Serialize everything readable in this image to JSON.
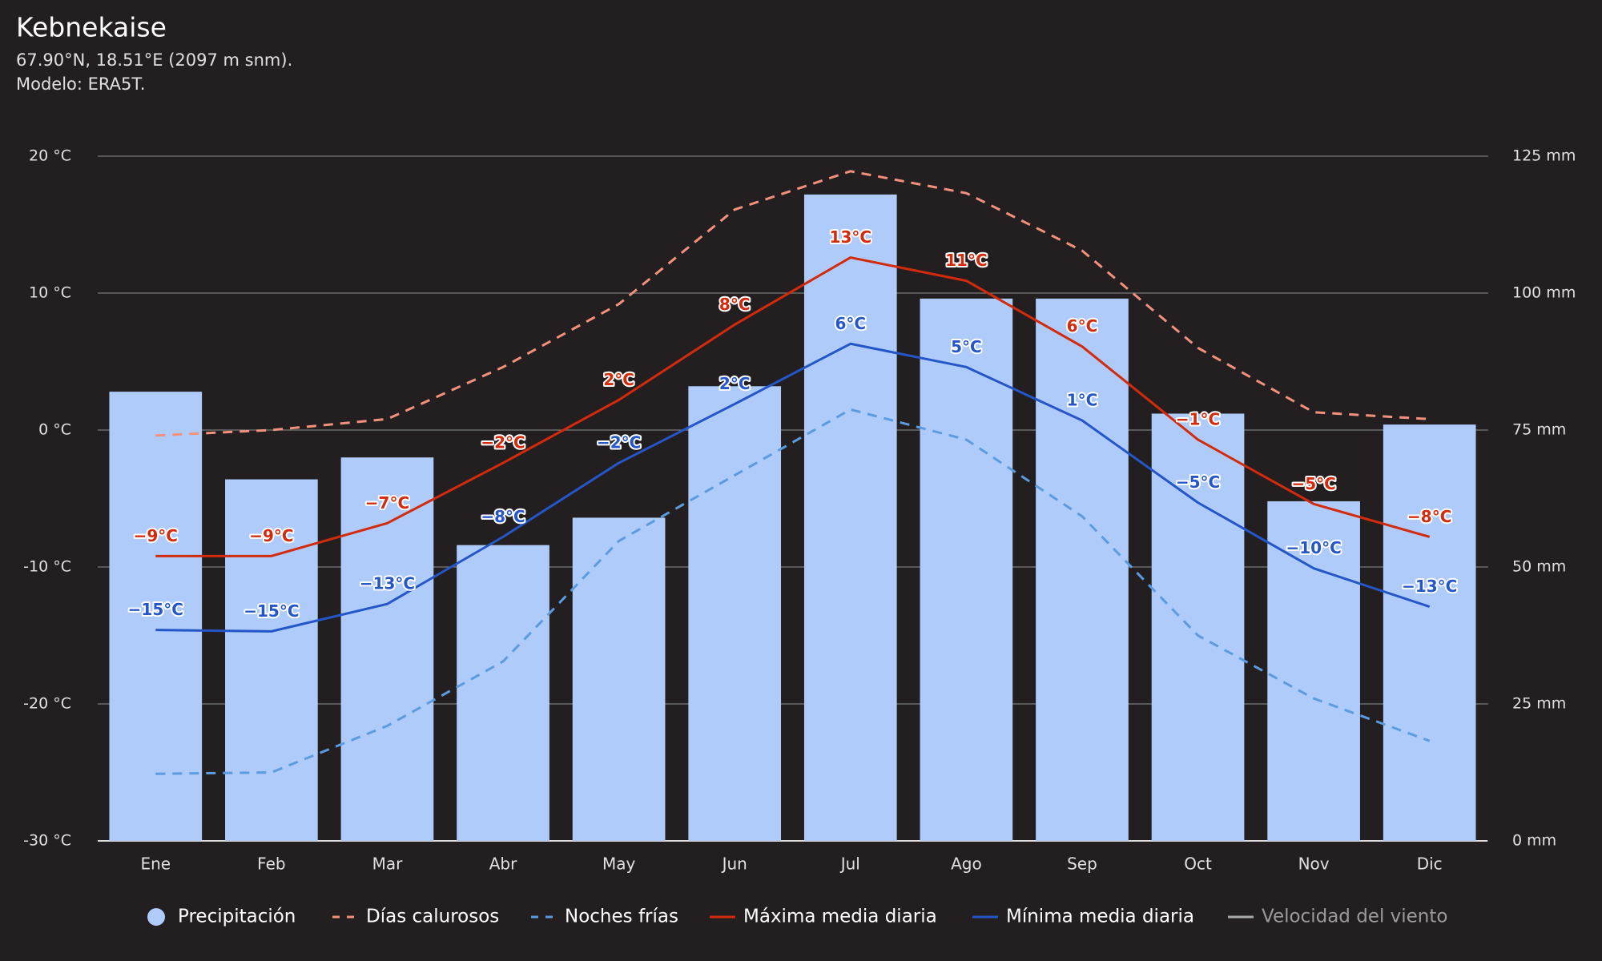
{
  "chart_data": {
    "type": "combo",
    "title": "Kebnekaise",
    "subtitle": [
      "67.90°N, 18.51°E (2097 m snm).",
      "Modelo: ERA5T."
    ],
    "categories": [
      "Ene",
      "Feb",
      "Mar",
      "Abr",
      "May",
      "Jun",
      "Jul",
      "Ago",
      "Sep",
      "Oct",
      "Nov",
      "Dic"
    ],
    "ylim": [
      -30,
      20
    ],
    "yticks": [
      {
        "value": -30,
        "label": "-30 °C"
      },
      {
        "value": -20,
        "label": "-20 °C"
      },
      {
        "value": -10,
        "label": "-10 °C"
      },
      {
        "value": 0,
        "label": "0 °C"
      },
      {
        "value": 10,
        "label": "10 °C"
      },
      {
        "value": 20,
        "label": "20 °C"
      }
    ],
    "y2lim": [
      0,
      125
    ],
    "y2ticks": [
      {
        "value": 0,
        "label": "0 mm"
      },
      {
        "value": 25,
        "label": "25 mm"
      },
      {
        "value": 50,
        "label": "50 mm"
      },
      {
        "value": 75,
        "label": "75 mm"
      },
      {
        "value": 100,
        "label": "100 mm"
      },
      {
        "value": 125,
        "label": "125 mm"
      }
    ],
    "grid": true,
    "legend": "bottom",
    "series": [
      {
        "name": "Precipitación",
        "type": "bar",
        "axis": "y2",
        "color": "#aecbfa",
        "values": [
          82,
          66,
          70,
          54,
          59,
          83,
          118,
          99,
          99,
          78,
          62,
          76
        ]
      },
      {
        "name": "Días calurosos",
        "type": "line",
        "dashed": true,
        "color": "#f4917c",
        "values": [
          -0.4,
          0.0,
          0.8,
          4.6,
          9.2,
          16.1,
          18.9,
          17.3,
          13.1,
          6.0,
          1.3,
          0.8
        ]
      },
      {
        "name": "Noches frías",
        "type": "line",
        "dashed": true,
        "color": "#5b9be0",
        "values": [
          -25.1,
          -25.0,
          -21.6,
          -16.9,
          -8.1,
          -3.3,
          1.5,
          -0.7,
          -6.3,
          -15.0,
          -19.6,
          -22.7
        ]
      },
      {
        "name": "Máxima media diaria",
        "type": "line",
        "dashed": false,
        "color": "#d42a0c",
        "values": [
          -9.2,
          -9.2,
          -6.8,
          -2.4,
          2.2,
          7.7,
          12.6,
          10.9,
          6.1,
          -0.7,
          -5.4,
          -7.8
        ],
        "value_labels": [
          "−9°C",
          "−9°C",
          "−7°C",
          "−2°C",
          "2°C",
          "8°C",
          "13°C",
          "11°C",
          "6°C",
          "−1°C",
          "−5°C",
          "−8°C"
        ]
      },
      {
        "name": "Mínima media diaria",
        "type": "line",
        "dashed": false,
        "color": "#2456c8",
        "values": [
          -14.6,
          -14.7,
          -12.7,
          -7.8,
          -2.4,
          1.9,
          6.3,
          4.6,
          0.7,
          -5.3,
          -10.1,
          -12.9
        ],
        "value_labels": [
          "−15°C",
          "−15°C",
          "−13°C",
          "−8°C",
          "−2°C",
          "2°C",
          "6°C",
          "5°C",
          "1°C",
          "−5°C",
          "−10°C",
          "−13°C"
        ]
      },
      {
        "name": "Velocidad del viento",
        "type": "line",
        "dashed": false,
        "hidden": true,
        "color": "#aaaaaa",
        "values": [
          null,
          null,
          null,
          null,
          null,
          null,
          null,
          null,
          null,
          null,
          null,
          null
        ]
      }
    ]
  }
}
